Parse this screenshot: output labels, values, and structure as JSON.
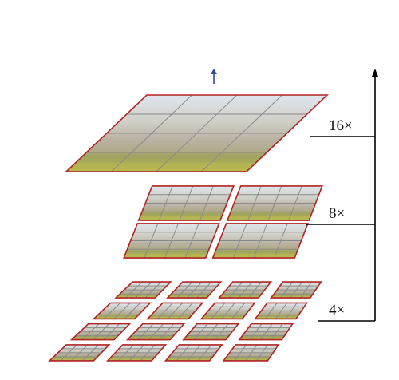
{
  "diagram": {
    "levels": [
      {
        "label": "16×",
        "grid": "4x4",
        "tiles": 1
      },
      {
        "label": "8×",
        "grid": "4x4",
        "tiles": 4
      },
      {
        "label": "4×",
        "grid": "4x4",
        "tiles": 16
      }
    ],
    "colors": {
      "tile_border": "#b02424",
      "grid_line": "#8a8a8a",
      "connector": "#000000",
      "top_arrow": "#2b4a9e",
      "sky": "#d9e3ec",
      "building": "#b9b2a2",
      "foliage": "#97a35a",
      "flowers": "#c8c04a"
    }
  }
}
